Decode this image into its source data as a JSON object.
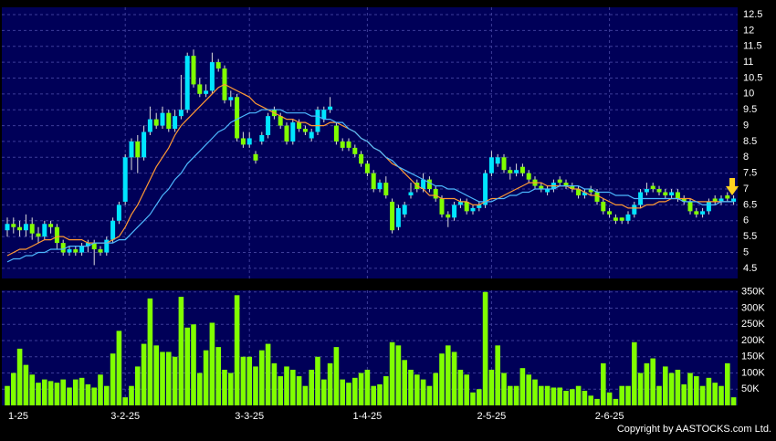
{
  "chart_data": {
    "type": "candlestick",
    "categories": [
      "1-25",
      null,
      null,
      null,
      null,
      null,
      null,
      null,
      null,
      null,
      null,
      null,
      null,
      null,
      null,
      null,
      null,
      null,
      null,
      "3-2-25",
      null,
      null,
      null,
      null,
      null,
      null,
      null,
      null,
      null,
      null,
      null,
      null,
      null,
      null,
      null,
      null,
      null,
      null,
      null,
      "3-3-25",
      null,
      null,
      null,
      null,
      null,
      null,
      null,
      null,
      null,
      null,
      null,
      null,
      null,
      null,
      null,
      null,
      null,
      null,
      "1-4-25",
      null,
      null,
      null,
      null,
      null,
      null,
      null,
      null,
      null,
      null,
      null,
      null,
      null,
      null,
      null,
      null,
      null,
      null,
      null,
      "2-5-25",
      null,
      null,
      null,
      null,
      null,
      null,
      null,
      null,
      null,
      null,
      null,
      null,
      null,
      null,
      null,
      null,
      null,
      null,
      "2-6-25",
      null,
      null,
      null,
      null,
      null,
      null,
      null,
      null,
      null,
      null,
      null,
      null,
      null,
      null,
      null,
      null,
      null,
      null,
      null,
      null
    ],
    "open": [
      5.7,
      5.9,
      5.8,
      5.7,
      5.9,
      5.6,
      5.5,
      5.9,
      5.8,
      5.3,
      5.0,
      5.1,
      5.0,
      5.2,
      5.3,
      5.1,
      5.0,
      5.4,
      6.0,
      6.6,
      8.0,
      8.5,
      8.0,
      8.8,
      9.2,
      9.0,
      9.4,
      8.9,
      9.3,
      9.5,
      11.2,
      10.3,
      10.0,
      10.1,
      11.0,
      10.8,
      9.8,
      9.9,
      8.6,
      8.4,
      8.1,
      8.5,
      8.7,
      9.5,
      9.3,
      9.0,
      8.5,
      9.1,
      8.9,
      8.6,
      8.8,
      9.2,
      9.5,
      9.0,
      8.5,
      8.5,
      8.3,
      8.1,
      7.8,
      7.5,
      7.0,
      7.2,
      6.6,
      5.8,
      6.2,
      6.8,
      7.2,
      7.0,
      7.3,
      7.0,
      6.7,
      6.2,
      6.1,
      6.5,
      6.6,
      6.3,
      6.4,
      6.5,
      7.5,
      7.8,
      8.0,
      7.6,
      7.5,
      7.7,
      7.5,
      7.3,
      7.1,
      6.9,
      7.0,
      7.3,
      7.2,
      7.1,
      7.0,
      6.8,
      7.0,
      6.9,
      6.6,
      6.3,
      6.1,
      6.1,
      6.0,
      6.2,
      6.5,
      6.9,
      7.1,
      7.0,
      6.9,
      6.8,
      6.9,
      6.7,
      6.6,
      6.3,
      6.2,
      6.3,
      6.7,
      6.6,
      6.8,
      6.6
    ],
    "high": [
      6.1,
      6.1,
      6.0,
      6.2,
      6.1,
      5.8,
      6.0,
      6.0,
      5.9,
      5.4,
      5.2,
      5.2,
      5.3,
      5.4,
      5.4,
      5.2,
      5.5,
      6.1,
      6.6,
      8.1,
      8.6,
      8.7,
      9.0,
      9.6,
      9.4,
      9.6,
      9.5,
      9.5,
      10.6,
      11.3,
      11.4,
      10.5,
      10.3,
      11.3,
      11.1,
      10.9,
      10.1,
      10.0,
      8.8,
      8.8,
      8.2,
      8.8,
      9.4,
      9.6,
      9.4,
      9.1,
      9.2,
      9.2,
      9.0,
      8.9,
      9.6,
      9.6,
      9.9,
      9.1,
      8.6,
      8.6,
      8.4,
      8.2,
      7.9,
      7.6,
      7.3,
      7.4,
      6.7,
      6.5,
      6.6,
      7.2,
      7.3,
      7.5,
      7.4,
      7.1,
      6.8,
      6.3,
      6.6,
      6.7,
      6.7,
      6.5,
      6.6,
      7.6,
      8.2,
      8.1,
      8.1,
      7.7,
      7.8,
      7.8,
      7.6,
      7.4,
      7.2,
      7.1,
      7.3,
      7.4,
      7.3,
      7.2,
      7.1,
      7.0,
      7.1,
      7.0,
      6.7,
      6.4,
      6.2,
      6.1,
      6.3,
      6.6,
      7.0,
      7.2,
      7.2,
      7.1,
      7.0,
      7.0,
      7.0,
      6.8,
      6.7,
      6.4,
      6.4,
      6.7,
      6.8,
      6.8,
      6.9,
      6.8
    ],
    "low": [
      5.5,
      5.6,
      5.5,
      5.5,
      5.4,
      5.3,
      5.4,
      5.6,
      5.1,
      4.9,
      4.9,
      4.9,
      4.9,
      5.0,
      4.6,
      4.9,
      4.9,
      5.3,
      5.9,
      6.5,
      7.6,
      7.5,
      7.9,
      8.7,
      8.9,
      8.9,
      8.8,
      8.8,
      9.2,
      9.4,
      10.2,
      9.9,
      9.9,
      10.0,
      10.7,
      9.7,
      9.6,
      8.5,
      8.3,
      8.3,
      7.8,
      8.4,
      8.6,
      9.2,
      8.9,
      8.4,
      8.4,
      8.8,
      8.7,
      8.5,
      8.7,
      9.1,
      9.4,
      8.4,
      8.2,
      8.2,
      8.0,
      7.7,
      7.4,
      6.9,
      6.9,
      6.7,
      5.6,
      5.7,
      6.1,
      6.7,
      6.9,
      6.9,
      6.9,
      6.6,
      6.1,
      5.8,
      6.0,
      6.4,
      6.2,
      6.2,
      6.3,
      6.4,
      7.4,
      7.7,
      7.5,
      7.3,
      7.4,
      7.4,
      7.2,
      7.0,
      6.9,
      6.8,
      6.9,
      7.1,
      7.0,
      6.9,
      6.7,
      6.7,
      6.8,
      6.5,
      6.2,
      6.1,
      5.9,
      5.9,
      5.9,
      6.1,
      6.4,
      6.8,
      6.9,
      6.8,
      6.7,
      6.7,
      6.6,
      6.5,
      6.2,
      6.1,
      6.1,
      6.2,
      6.5,
      6.5,
      6.6,
      6.5
    ],
    "close": [
      5.9,
      5.8,
      5.7,
      5.9,
      5.6,
      5.5,
      5.9,
      5.8,
      5.3,
      5.0,
      5.1,
      5.0,
      5.2,
      5.3,
      5.1,
      5.0,
      5.4,
      6.0,
      6.5,
      8.0,
      8.5,
      8.0,
      8.8,
      9.2,
      9.0,
      9.4,
      8.9,
      9.3,
      9.5,
      11.2,
      10.3,
      10.0,
      10.1,
      11.0,
      10.8,
      9.8,
      9.9,
      8.6,
      8.4,
      8.6,
      7.9,
      8.7,
      9.3,
      9.3,
      9.0,
      8.5,
      9.1,
      8.9,
      8.8,
      8.8,
      9.5,
      9.5,
      9.6,
      8.5,
      8.3,
      8.3,
      8.1,
      7.8,
      7.5,
      7.0,
      7.2,
      6.8,
      5.7,
      6.4,
      6.5,
      6.9,
      7.0,
      7.3,
      7.0,
      6.7,
      6.2,
      6.1,
      6.5,
      6.6,
      6.3,
      6.4,
      6.5,
      7.5,
      8.0,
      8.0,
      7.6,
      7.5,
      7.6,
      7.5,
      7.3,
      7.1,
      7.0,
      7.0,
      7.2,
      7.2,
      7.1,
      7.0,
      6.8,
      6.9,
      6.9,
      6.6,
      6.3,
      6.2,
      6.0,
      6.0,
      6.2,
      6.5,
      6.9,
      7.0,
      7.0,
      6.9,
      6.8,
      6.9,
      6.7,
      6.6,
      6.3,
      6.2,
      6.3,
      6.6,
      6.6,
      6.7,
      6.7,
      6.7
    ],
    "volume": [
      60000,
      100000,
      175000,
      125000,
      95000,
      70000,
      80000,
      75000,
      70000,
      80000,
      55000,
      80000,
      85000,
      65000,
      55000,
      95000,
      60000,
      160000,
      230000,
      25000,
      60000,
      120000,
      190000,
      330000,
      185000,
      165000,
      165000,
      150000,
      335000,
      240000,
      250000,
      100000,
      170000,
      255000,
      180000,
      110000,
      100000,
      340000,
      150000,
      150000,
      120000,
      170000,
      190000,
      130000,
      90000,
      120000,
      110000,
      90000,
      60000,
      110000,
      150000,
      80000,
      130000,
      180000,
      80000,
      70000,
      85000,
      100000,
      110000,
      60000,
      65000,
      90000,
      195000,
      185000,
      140000,
      110000,
      95000,
      80000,
      60000,
      100000,
      160000,
      185000,
      165000,
      110000,
      95000,
      40000,
      50000,
      350000,
      110000,
      185000,
      100000,
      60000,
      60000,
      115000,
      95000,
      80000,
      60000,
      60000,
      55000,
      55000,
      45000,
      50000,
      60000,
      45000,
      30000,
      20000,
      130000,
      40000,
      20000,
      60000,
      60000,
      195000,
      100000,
      130000,
      145000,
      60000,
      120000,
      100000,
      110000,
      65000,
      100000,
      90000,
      60000,
      85000,
      70000,
      60000,
      130000,
      25000
    ],
    "ma": [
      {
        "color": "#ff9933",
        "values": [
          4.9,
          5.0,
          5.1,
          5.1,
          5.2,
          5.3,
          5.4,
          5.4,
          5.5,
          5.5,
          5.4,
          5.4,
          5.4,
          5.3,
          5.3,
          5.3,
          5.3,
          5.4,
          5.5,
          5.8,
          6.2,
          6.5,
          6.9,
          7.3,
          7.7,
          8.0,
          8.3,
          8.7,
          9.0,
          9.2,
          9.4,
          9.6,
          9.8,
          10.0,
          10.2,
          10.3,
          10.2,
          10.1,
          10.0,
          9.9,
          9.7,
          9.6,
          9.5,
          9.4,
          9.3,
          9.2,
          9.2,
          9.1,
          9.1,
          9.0,
          9.0,
          9.0,
          9.1,
          9.1,
          9.0,
          8.9,
          8.8,
          8.6,
          8.5,
          8.3,
          8.2,
          8.0,
          7.8,
          7.7,
          7.5,
          7.3,
          7.1,
          7.0,
          6.8,
          6.8,
          6.7,
          6.7,
          6.7,
          6.6,
          6.6,
          6.5,
          6.5,
          6.6,
          6.7,
          6.7,
          6.8,
          6.9,
          7.0,
          7.1,
          7.2,
          7.2,
          7.2,
          7.1,
          7.1,
          7.1,
          7.1,
          7.0,
          7.0,
          6.9,
          6.8,
          6.8,
          6.7,
          6.6,
          6.5,
          6.5,
          6.4,
          6.4,
          6.4,
          6.5,
          6.5,
          6.6,
          6.6,
          6.7,
          6.7,
          6.7,
          6.7,
          6.6,
          6.6,
          6.6,
          6.6,
          6.6,
          6.6,
          6.6
        ]
      },
      {
        "color": "#4db8ff",
        "values": [
          4.7,
          4.8,
          4.8,
          4.9,
          4.9,
          5.0,
          5.0,
          5.1,
          5.1,
          5.1,
          5.2,
          5.2,
          5.2,
          5.2,
          5.3,
          5.3,
          5.3,
          5.3,
          5.4,
          5.4,
          5.6,
          5.8,
          6.0,
          6.2,
          6.5,
          6.8,
          7.0,
          7.3,
          7.5,
          7.8,
          8.0,
          8.2,
          8.4,
          8.6,
          8.8,
          8.9,
          9.1,
          9.2,
          9.3,
          9.4,
          9.4,
          9.5,
          9.5,
          9.5,
          9.5,
          9.4,
          9.4,
          9.4,
          9.4,
          9.3,
          9.3,
          9.2,
          9.2,
          9.1,
          9.1,
          8.9,
          8.8,
          8.6,
          8.5,
          8.3,
          8.2,
          8.0,
          7.9,
          7.7,
          7.6,
          7.5,
          7.4,
          7.3,
          7.2,
          7.1,
          7.1,
          7.0,
          7.0,
          6.9,
          6.8,
          6.7,
          6.6,
          6.6,
          6.6,
          6.7,
          6.7,
          6.8,
          6.8,
          6.9,
          6.9,
          7.0,
          7.0,
          7.0,
          7.0,
          7.1,
          7.1,
          7.1,
          7.1,
          7.0,
          7.0,
          6.9,
          6.9,
          6.9,
          6.8,
          6.8,
          6.8,
          6.7,
          6.7,
          6.7,
          6.7,
          6.7,
          6.7,
          6.7,
          6.7,
          6.6,
          6.6,
          6.6,
          6.5,
          6.5,
          6.5,
          6.6,
          6.6,
          6.6
        ]
      }
    ],
    "colors": {
      "up": "#00e5ff",
      "down": "#80ff00",
      "volume": "#80ff00"
    },
    "ylim": [
      4.18,
      12.73
    ],
    "yticks": [
      4.5,
      5,
      5.5,
      6,
      6.5,
      7,
      7.5,
      8,
      8.5,
      9,
      9.5,
      10,
      10.5,
      11,
      11.5,
      12,
      12.5
    ],
    "volume_ylim": [
      0,
      355000
    ],
    "volume_yticks": [
      {
        "value": 50000,
        "label": "50K"
      },
      {
        "value": 100000,
        "label": "100K"
      },
      {
        "value": 150000,
        "label": "150K"
      },
      {
        "value": 200000,
        "label": "200K"
      },
      {
        "value": 250000,
        "label": "250K"
      },
      {
        "value": 300000,
        "label": "300K"
      },
      {
        "value": 350000,
        "label": "350K"
      }
    ],
    "grid": true
  },
  "footer": {
    "copyright": "Copyright by AASTOCKS.com Ltd."
  }
}
